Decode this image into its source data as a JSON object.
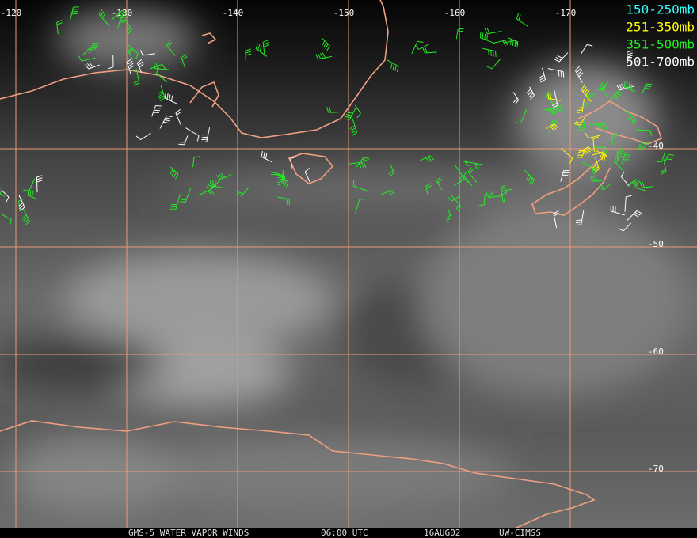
{
  "map": {
    "legend": [
      {
        "label": "150-250mb",
        "color": "#33ffff"
      },
      {
        "label": "251-350mb",
        "color": "#ffff00"
      },
      {
        "label": "351-500mb",
        "color": "#22ee22"
      },
      {
        "label": "501-700mb",
        "color": "#ffffff"
      }
    ],
    "longitude_labels": [
      -120,
      -130,
      -140,
      -150,
      -160,
      -170
    ],
    "latitude_labels": [
      -40,
      -50,
      -60,
      -70
    ],
    "footer": [
      "GMS-5 WATER VAPOR WINDS",
      "06:00 UTC",
      "16AUG02",
      "UW-CIMSS"
    ]
  }
}
